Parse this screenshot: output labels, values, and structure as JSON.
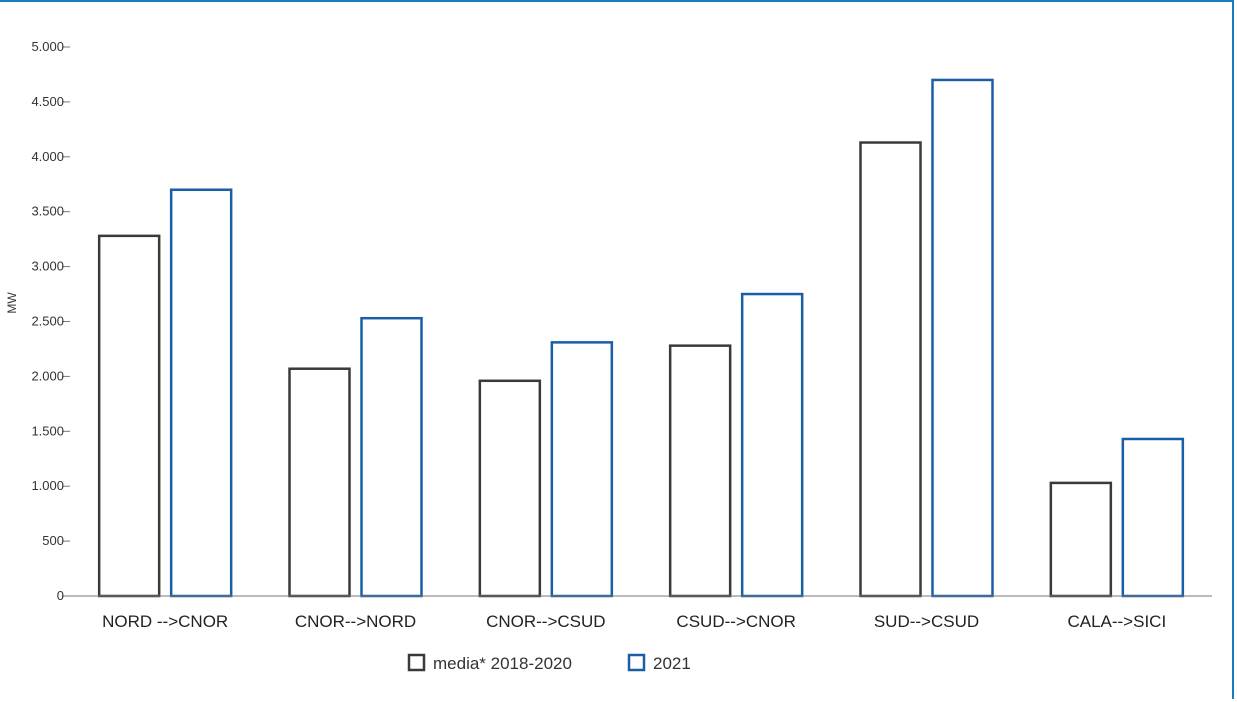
{
  "chart_data": {
    "type": "bar",
    "categories": [
      "NORD -->CNOR",
      "CNOR-->NORD",
      "CNOR-->CSUD",
      "CSUD-->CNOR",
      "SUD-->CSUD",
      "CALA-->SICI"
    ],
    "series": [
      {
        "name": "media* 2018-2020",
        "color": "#3a3a3a",
        "values": [
          3280,
          2070,
          1960,
          2280,
          4130,
          1030
        ]
      },
      {
        "name": "2021",
        "color": "#1a5ea8",
        "values": [
          3700,
          2530,
          2310,
          2750,
          4700,
          1430
        ]
      }
    ],
    "title": "",
    "xlabel": "",
    "ylabel": "MW",
    "ylim": [
      0,
      5000
    ],
    "yticks": [
      0,
      500,
      1000,
      1500,
      2000,
      2500,
      3000,
      3500,
      4000,
      4500,
      5000
    ],
    "ytick_labels": [
      "0",
      "500",
      "1.000",
      "1.500",
      "2.000",
      "2.500",
      "3.000",
      "3.500",
      "4.000",
      "4.500",
      "5.000"
    ],
    "grid": false,
    "legend_position": "bottom-center",
    "bar_style": "outlined"
  }
}
